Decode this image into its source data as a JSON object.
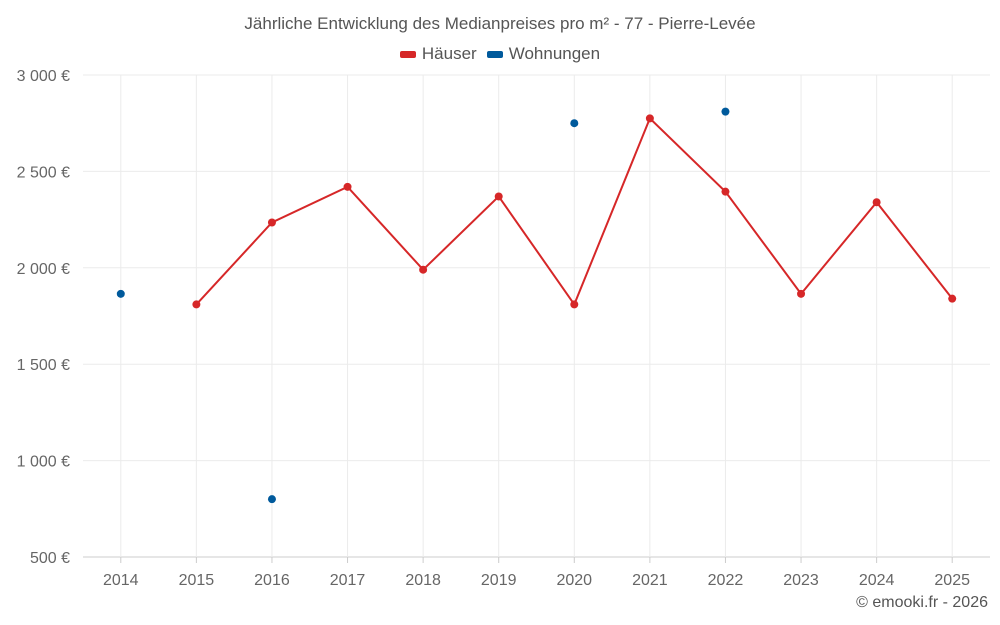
{
  "chart_data": {
    "type": "line",
    "title": "Jährliche Entwicklung des Medianpreises pro m² - 77 - Pierre-Levée",
    "categories": [
      "2014",
      "2015",
      "2016",
      "2017",
      "2018",
      "2019",
      "2020",
      "2021",
      "2022",
      "2023",
      "2024",
      "2025"
    ],
    "y_ticks": [
      "3 000 €",
      "2 500 €",
      "2 000 €",
      "1 500 €",
      "1 000 €",
      "500 €"
    ],
    "ylim": [
      500,
      3000
    ],
    "series": [
      {
        "name": "Häuser",
        "color": "#d62728",
        "values": [
          null,
          1810,
          2235,
          2420,
          1990,
          2370,
          1810,
          2775,
          2395,
          1865,
          2340,
          1840
        ]
      },
      {
        "name": "Wohnungen",
        "color": "#005a9c",
        "values": [
          1865,
          null,
          800,
          null,
          null,
          null,
          2750,
          null,
          2810,
          null,
          null,
          null
        ]
      }
    ],
    "credit": "© emooki.fr - 2026"
  }
}
